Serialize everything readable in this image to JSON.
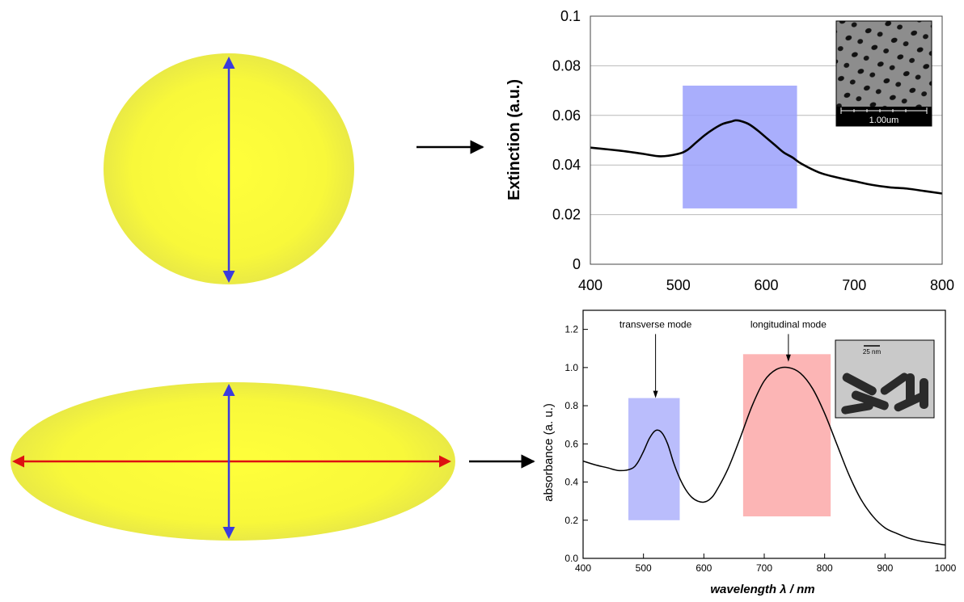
{
  "chart_data": [
    {
      "type": "line",
      "title": "",
      "xlabel": "",
      "ylabel": "Extinction (a.u.)",
      "xlim": [
        400,
        800
      ],
      "ylim": [
        0,
        0.1
      ],
      "xticks": [
        "400",
        "500",
        "600",
        "700",
        "800"
      ],
      "yticks": [
        "0",
        "0.02",
        "0.04",
        "0.06",
        "0.08",
        "0.1"
      ],
      "grid": true,
      "series": [
        {
          "x": [
            400,
            420,
            440,
            460,
            480,
            500,
            510,
            520,
            530,
            540,
            550,
            560,
            565,
            570,
            580,
            590,
            600,
            610,
            620,
            630,
            640,
            660,
            680,
            700,
            720,
            740,
            760,
            780,
            800
          ],
          "y": [
            0.047,
            0.0463,
            0.0455,
            0.0445,
            0.0435,
            0.0445,
            0.046,
            0.049,
            0.052,
            0.0545,
            0.0565,
            0.0575,
            0.058,
            0.0578,
            0.0565,
            0.054,
            0.051,
            0.048,
            0.045,
            0.043,
            0.0405,
            0.037,
            0.035,
            0.0335,
            0.032,
            0.031,
            0.0305,
            0.0295,
            0.0285
          ]
        }
      ],
      "highlight_bands": [
        {
          "x_range": [
            505,
            635
          ],
          "y_range": [
            0.0225,
            0.072
          ],
          "color": "#9aa0fb"
        }
      ],
      "inset_scale_label": "1.00um"
    },
    {
      "type": "line",
      "title": "",
      "xlabel": "wavelength λ / nm",
      "ylabel": "absorbance   (a. u.)",
      "xlim": [
        400,
        1000
      ],
      "ylim": [
        0.0,
        1.3
      ],
      "xticks": [
        "400",
        "500",
        "600",
        "700",
        "800",
        "900",
        "1000"
      ],
      "yticks": [
        "0.0",
        "0.2",
        "0.4",
        "0.6",
        "0.8",
        "1.0",
        "1.2"
      ],
      "grid": false,
      "series": [
        {
          "x": [
            400,
            420,
            440,
            460,
            480,
            490,
            500,
            510,
            520,
            530,
            540,
            550,
            560,
            570,
            580,
            590,
            600,
            610,
            620,
            640,
            660,
            680,
            700,
            720,
            740,
            760,
            780,
            800,
            820,
            840,
            860,
            880,
            900,
            920,
            940,
            960,
            980,
            1000
          ],
          "y": [
            0.51,
            0.49,
            0.475,
            0.46,
            0.47,
            0.5,
            0.56,
            0.63,
            0.67,
            0.66,
            0.6,
            0.5,
            0.42,
            0.36,
            0.32,
            0.3,
            0.295,
            0.31,
            0.35,
            0.47,
            0.63,
            0.8,
            0.93,
            0.99,
            1.0,
            0.97,
            0.89,
            0.76,
            0.6,
            0.44,
            0.31,
            0.22,
            0.16,
            0.13,
            0.105,
            0.09,
            0.08,
            0.07
          ]
        }
      ],
      "annotations": [
        {
          "text": "transverse mode",
          "x": 520,
          "y": 1.15,
          "arrow_to_y": 0.84
        },
        {
          "text": "longitudinal mode",
          "x": 740,
          "y": 1.15,
          "arrow_to_y": 1.03
        }
      ],
      "highlight_bands": [
        {
          "x_range": [
            475,
            560
          ],
          "y_range": [
            0.2,
            0.84
          ],
          "color": "#aeb1fb"
        },
        {
          "x_range": [
            665,
            810
          ],
          "y_range": [
            0.22,
            1.07
          ],
          "color": "#fba8a8"
        }
      ],
      "inset_scale_label": "25 nm"
    }
  ],
  "diagram": {
    "colors": {
      "particle_center": "#ffff33",
      "particle_edge": "#e8e845",
      "transverse_axis": "#3b3bdd",
      "longitudinal_axis": "#dd1111",
      "arrow": "#000000"
    }
  }
}
